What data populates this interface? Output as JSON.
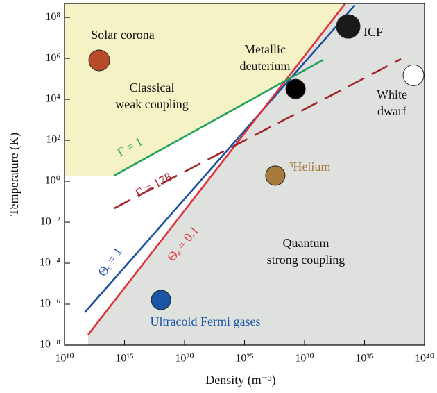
{
  "chart_data": {
    "type": "line",
    "x_label": "Density (m⁻³)",
    "y_label": "Temperature (K)",
    "xscale": "log",
    "yscale": "log",
    "xlim": [
      10000000000.0,
      1e+40
    ],
    "ylim": [
      1e-08,
      480000000.0
    ],
    "xticks": [
      {
        "value": 10000000000.0,
        "label": "10¹⁰"
      },
      {
        "value": 1000000000000000.0,
        "label": "10¹⁵"
      },
      {
        "value": 1e+20,
        "label": "10²⁰"
      },
      {
        "value": 1e+25,
        "label": "10²⁵"
      },
      {
        "value": 1e+30,
        "label": "10³⁰"
      },
      {
        "value": 1e+35,
        "label": "10³⁵"
      },
      {
        "value": 1e+40,
        "label": "10⁴⁰"
      }
    ],
    "yticks": [
      {
        "value": 1e-08,
        "label": "10⁻⁸"
      },
      {
        "value": 1e-06,
        "label": "10⁻⁶"
      },
      {
        "value": 0.0001,
        "label": "10⁻⁴"
      },
      {
        "value": 0.01,
        "label": "10⁻²"
      },
      {
        "value": 1,
        "label": "10⁰"
      },
      {
        "value": 100,
        "label": "10²"
      },
      {
        "value": 10000,
        "label": "10⁴"
      },
      {
        "value": 1000000.0,
        "label": "10⁶"
      },
      {
        "value": 100000000.0,
        "label": "10⁸"
      }
    ],
    "series": [
      {
        "name": "Θₑ = 1",
        "color": "#1c4f9e",
        "dash": false,
        "x": [
          500000000000.0,
          1.6e+34
        ],
        "values": [
          4e-07,
          400000000.0
        ]
      },
      {
        "name": "Θₑ = 0.1",
        "color": "#e0313a",
        "dash": false,
        "x": [
          930000000000.0,
          2.5e+33
        ],
        "values": [
          3.2e-08,
          480000000.0
        ]
      },
      {
        "name": "Γ = 1",
        "color": "#1fa25a",
        "dash": false,
        "x": [
          140000000000000.0,
          3.6e+31
        ],
        "values": [
          1.9,
          850000.0
        ]
      },
      {
        "name": "Γ = 178",
        "color": "#a3242c",
        "dash": true,
        "x": [
          140000000000000.0,
          1.1e+38
        ],
        "values": [
          0.048,
          930000.0
        ]
      }
    ],
    "points": [
      {
        "label": [
          "Solar corona"
        ],
        "color": "#b84a2a",
        "x": 7800000000000.0,
        "y": 800000.0
      },
      {
        "label": [
          "Metallic",
          "deuterium"
        ],
        "color": "#000000",
        "x": 1.8e+29,
        "y": 32000.0
      },
      {
        "label": [
          "ICF"
        ],
        "color": "#1a1a1a",
        "x": 4.4e+33,
        "y": 36000000.0
      },
      {
        "label": [
          "White",
          "dwarf"
        ],
        "color": "#ffffff",
        "x": 1.2e+39,
        "y": 150000.0
      },
      {
        "label": [
          "³Helium"
        ],
        "color": "#a57a3a",
        "x": 3.7e+27,
        "y": 1.9
      },
      {
        "label": [
          "Ultracold Fermi gases"
        ],
        "color": "#1a56a8",
        "x": 1.1e+18,
        "y": 1.6e-06
      }
    ],
    "annotations": [
      [
        "Classical",
        "weak coupling"
      ],
      [
        "Quantum",
        "strong coupling"
      ]
    ]
  }
}
